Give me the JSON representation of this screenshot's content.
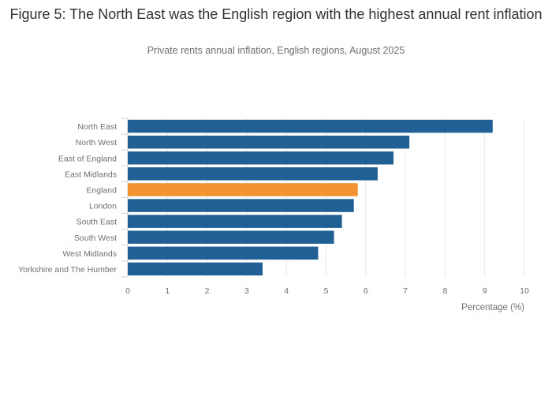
{
  "title": "Figure 5: The North East was the English region with the highest annual rent inflation",
  "subtitle": "Private rents annual inflation, English regions, August 2025",
  "chart_data": {
    "type": "bar",
    "orientation": "horizontal",
    "categories": [
      "North East",
      "North West",
      "East of England",
      "East Midlands",
      "England",
      "London",
      "South East",
      "South West",
      "West Midlands",
      "Yorkshire and The Humber"
    ],
    "values": [
      9.2,
      7.1,
      6.7,
      6.3,
      5.8,
      5.7,
      5.4,
      5.2,
      4.8,
      3.4
    ],
    "highlight": "England",
    "colors": {
      "bar": "#206095",
      "highlight": "#F39431",
      "grid": "#e6e6e6",
      "tick_text": "#707071"
    },
    "xlabel": "Percentage (%)",
    "ylabel": "",
    "xlim": [
      0,
      10
    ],
    "xticks": [
      0,
      1,
      2,
      3,
      4,
      5,
      6,
      7,
      8,
      9,
      10
    ],
    "grid": true,
    "legend": "none"
  }
}
